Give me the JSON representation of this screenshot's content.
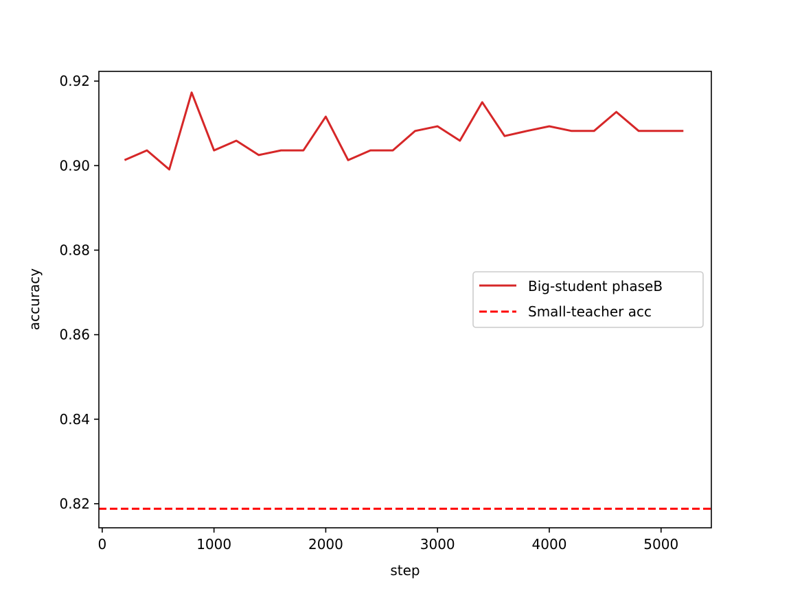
{
  "chart_data": {
    "type": "line",
    "title": "",
    "xlabel": "step",
    "ylabel": "accuracy",
    "xlim": [
      -30,
      5450
    ],
    "ylim": [
      0.8143,
      0.9223
    ],
    "xticks": [
      0,
      1000,
      2000,
      3000,
      4000,
      5000
    ],
    "xtick_labels": [
      "0",
      "1000",
      "2000",
      "3000",
      "4000",
      "5000"
    ],
    "yticks": [
      0.82,
      0.84,
      0.86,
      0.88,
      0.9,
      0.92
    ],
    "ytick_labels": [
      "0.82",
      "0.84",
      "0.86",
      "0.88",
      "0.90",
      "0.92"
    ],
    "grid": false,
    "legend_position": "center-right",
    "series": [
      {
        "name": "Big-student phaseB",
        "style": "solid",
        "color": "#d62728",
        "x": [
          200,
          400,
          600,
          800,
          1000,
          1200,
          1400,
          1600,
          1800,
          2000,
          2200,
          2400,
          2600,
          2800,
          3000,
          3200,
          3400,
          3600,
          3800,
          4000,
          4200,
          4400,
          4600,
          4800,
          5000,
          5200
        ],
        "y": [
          0.9013,
          0.9036,
          0.8991,
          0.9173,
          0.9036,
          0.9059,
          0.9025,
          0.9036,
          0.9036,
          0.9116,
          0.9013,
          0.9036,
          0.9036,
          0.9082,
          0.9093,
          0.9059,
          0.915,
          0.907,
          0.9082,
          0.9093,
          0.9082,
          0.9082,
          0.9127,
          0.9082,
          0.9082,
          0.9082
        ]
      },
      {
        "name": "Small-teacher acc",
        "style": "dashed",
        "color": "#ff0000",
        "hline": 0.8188
      }
    ]
  }
}
